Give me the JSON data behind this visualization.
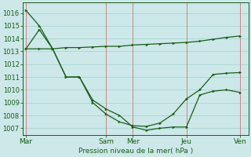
{
  "background_color": "#cce8e8",
  "grid_color": "#aad4d4",
  "line_color": "#1a5c1a",
  "vline_color": "#cc8888",
  "xlabel_text": "Pression niveau de la mer( hPa )",
  "ylim": [
    1006.5,
    1016.8
  ],
  "yticks": [
    1007,
    1008,
    1009,
    1010,
    1011,
    1012,
    1013,
    1014,
    1015,
    1016
  ],
  "xtick_labels": [
    "Mar",
    "Sam",
    "Mer",
    "Jeu",
    "Ven"
  ],
  "xtick_positions": [
    0,
    48,
    64,
    96,
    128
  ],
  "xlim": [
    -2,
    133
  ],
  "line1_x": [
    0,
    8,
    16,
    24,
    32,
    40,
    48,
    56,
    64,
    72,
    80,
    88,
    96,
    104,
    112,
    120,
    128
  ],
  "line1_y": [
    1016.2,
    1015.0,
    1013.2,
    1011.0,
    1011.0,
    1009.2,
    1008.5,
    1008.0,
    1007.1,
    1006.85,
    1007.0,
    1007.1,
    1007.1,
    1009.6,
    1009.9,
    1010.0,
    1009.8
  ],
  "line2_x": [
    0,
    8,
    16,
    24,
    32,
    40,
    48,
    56,
    64,
    72,
    80,
    88,
    96,
    104,
    112,
    120,
    128
  ],
  "line2_y": [
    1013.2,
    1014.7,
    1013.2,
    1013.3,
    1013.3,
    1013.35,
    1013.4,
    1013.4,
    1013.5,
    1013.55,
    1013.6,
    1013.65,
    1013.7,
    1013.8,
    1013.95,
    1014.1,
    1014.2
  ],
  "line3_x": [
    0,
    8,
    16,
    24,
    32,
    40,
    48,
    56,
    64,
    72,
    80,
    88,
    96,
    104,
    112,
    120,
    128
  ],
  "line3_y": [
    1013.2,
    1013.2,
    1013.2,
    1011.0,
    1011.0,
    1009.0,
    1008.1,
    1007.5,
    1007.2,
    1007.15,
    1007.4,
    1008.1,
    1009.3,
    1010.0,
    1011.2,
    1011.3,
    1011.35
  ],
  "vline_positions": [
    0,
    48,
    64,
    96,
    128
  ],
  "ytick_fontsize": 6,
  "xtick_fontsize": 6.5,
  "xlabel_fontsize": 6.5,
  "marker_size": 2.5,
  "line_width": 0.9
}
